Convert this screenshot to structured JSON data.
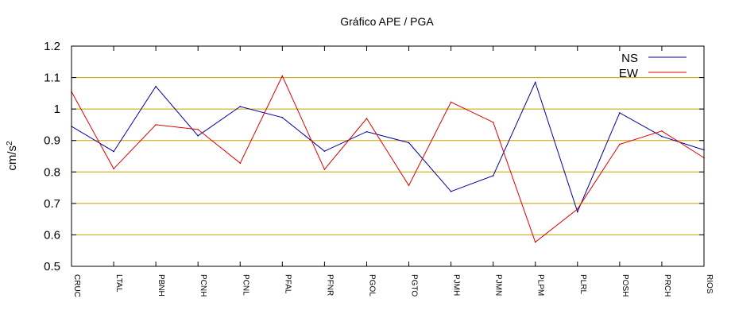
{
  "chart_data": {
    "type": "line",
    "title": "Gráfico  APE / PGA",
    "ylabel": "cm/s",
    "ylabel_sup": "2",
    "xlabel": "",
    "ylim": [
      0.5,
      1.2
    ],
    "yticks": [
      "0.5",
      "0.6",
      "0.7",
      "0.8",
      "0.9",
      "1",
      "1.1",
      "1.2"
    ],
    "grid": true,
    "legend_position": "top-right",
    "categories": [
      "CRUC",
      "LTAL",
      "PBNH",
      "PCNH",
      "PCNL",
      "PFAL",
      "PFNR",
      "PGOL",
      "PGTO",
      "PJMH",
      "PJMN",
      "PLPM",
      "PLRL",
      "POSH",
      "PRCH",
      "RIOS"
    ],
    "series": [
      {
        "name": "NS",
        "color": "#0000a0",
        "values": [
          0.945,
          0.865,
          1.072,
          0.915,
          1.008,
          0.973,
          0.866,
          0.928,
          0.893,
          0.738,
          0.788,
          1.085,
          0.673,
          0.988,
          0.913,
          0.87
        ]
      },
      {
        "name": "EW",
        "color": "#e00000",
        "values": [
          1.055,
          0.81,
          0.95,
          0.935,
          0.828,
          1.105,
          0.808,
          0.97,
          0.757,
          1.022,
          0.958,
          0.577,
          0.682,
          0.888,
          0.93,
          0.845
        ]
      }
    ],
    "grid_color": "#c8a000",
    "axis_color": "#000000"
  }
}
